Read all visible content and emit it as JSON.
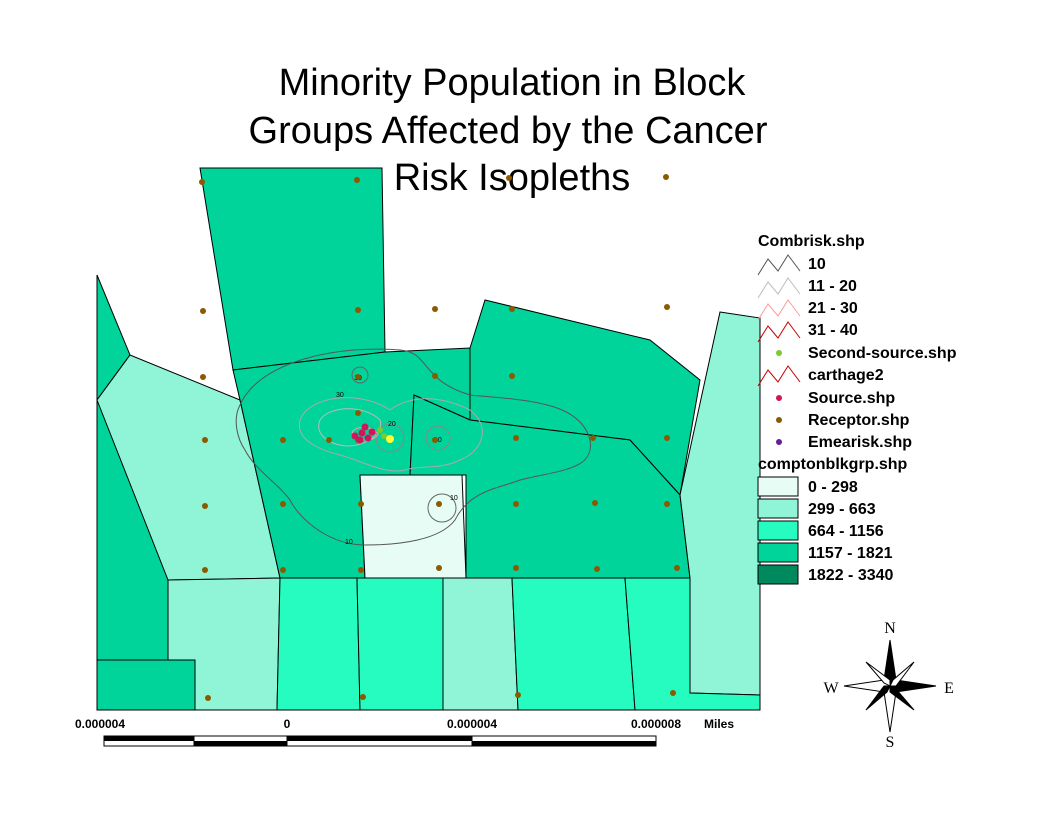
{
  "title": {
    "line1": "Minority Population in Block",
    "line2": "Groups Affected by the Cancer",
    "line3": "Risk Isopleths"
  },
  "legend": {
    "combrisk": {
      "heading": "Combrisk.shp",
      "items": [
        {
          "label": "10",
          "color": "#555555"
        },
        {
          "label": "11 - 20",
          "color": "#bdbdbd"
        },
        {
          "label": "21 - 30",
          "color": "#ff9a9a"
        },
        {
          "label": "31 - 40",
          "color": "#c80000"
        }
      ]
    },
    "layers": [
      {
        "label": "Second-source.shp",
        "symbol": "dot",
        "color": "#7dcb2b"
      },
      {
        "label": "carthage2",
        "symbol": "line",
        "color": "#c80000"
      },
      {
        "label": "Source.shp",
        "symbol": "dot",
        "color": "#d4145a"
      },
      {
        "label": "Receptor.shp",
        "symbol": "dot",
        "color": "#8b5a00"
      },
      {
        "label": "Emearisk.shp",
        "symbol": "dot",
        "color": "#6a1b9a"
      }
    ],
    "blockgroups": {
      "heading": "comptonblkgrp.shp",
      "classes": [
        {
          "label": "0 - 298",
          "color": "#e6fcf4"
        },
        {
          "label": "299 - 663",
          "color": "#8ff5d6"
        },
        {
          "label": "664 - 1156",
          "color": "#27fcc0"
        },
        {
          "label": "1157 - 1821",
          "color": "#00d49a"
        },
        {
          "label": "1822 - 3340",
          "color": "#00895c"
        }
      ]
    }
  },
  "scale_bar": {
    "labels": [
      "0.000004",
      "0",
      "0.000004",
      "0.000008"
    ],
    "units": "Miles"
  },
  "compass": {
    "n": "N",
    "s": "S",
    "e": "E",
    "w": "W"
  },
  "isopleth_labels": [
    "30",
    "20",
    "10",
    "10",
    "10",
    "10"
  ]
}
